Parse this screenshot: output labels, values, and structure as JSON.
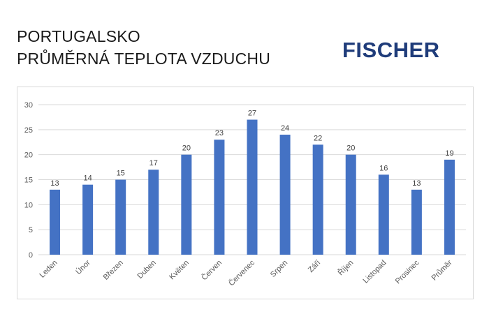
{
  "header": {
    "title_line1": "PORTUGALSKO",
    "title_line2": "PRŮMĚRNÁ TEPLOTA VZDUCHU",
    "logo_text": "FISCHER"
  },
  "colors": {
    "bar": "#4472c4",
    "logo": "#1f3c7a",
    "grid": "#d9d9d9",
    "text": "#595959"
  },
  "chart_data": {
    "type": "bar",
    "categories": [
      "Leden",
      "Únor",
      "Březen",
      "Duben",
      "Květen",
      "Červen",
      "Červenec",
      "Srpen",
      "Září",
      "Říjen",
      "Listopad",
      "Prosinec",
      "Průměr"
    ],
    "values": [
      13,
      14,
      15,
      17,
      20,
      23,
      27,
      24,
      22,
      20,
      16,
      13,
      19
    ],
    "data_labels": [
      "13",
      "14",
      "15",
      "17",
      "20",
      "23",
      "27",
      "24",
      "22",
      "20",
      "16",
      "13",
      "19"
    ],
    "yticks": [
      0,
      5,
      10,
      15,
      20,
      25,
      30
    ],
    "ylim": [
      0,
      30
    ],
    "grid": true,
    "legend": "none"
  }
}
